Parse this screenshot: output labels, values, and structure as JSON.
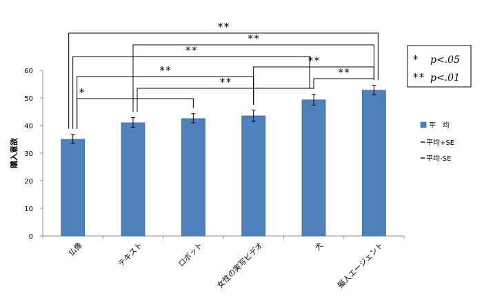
{
  "chart_data": {
    "type": "bar",
    "title": "",
    "xlabel": "",
    "ylabel": "購入意欲",
    "ylim": [
      0,
      60
    ],
    "yticks": [
      0,
      10,
      20,
      30,
      40,
      50,
      60
    ],
    "grid": false,
    "categories": [
      "仏像",
      "テキスト",
      "ロボット",
      "女性の実写ビデオ",
      "犬",
      "擬人エージェント"
    ],
    "series": [
      {
        "name": "平　均",
        "values": [
          35.0,
          41.0,
          42.5,
          43.5,
          49.3,
          52.8
        ],
        "se_upper": [
          36.8,
          42.9,
          44.3,
          45.6,
          51.3,
          54.6
        ],
        "se_lower": [
          33.5,
          39.4,
          41.0,
          41.5,
          47.4,
          51.2
        ]
      }
    ],
    "bar_color": "#4F81BD",
    "legend": {
      "position": "right",
      "entries": [
        "平　均",
        "平均+SE",
        "平均-SE"
      ]
    },
    "significance": [
      {
        "from": 0,
        "to": 5,
        "label": "**"
      },
      {
        "from": 1,
        "to": 5,
        "label": "**"
      },
      {
        "from": 0,
        "to": 4,
        "label": "**"
      },
      {
        "from": 3,
        "to": 5,
        "label": "**"
      },
      {
        "from": 0,
        "to": 3,
        "label": "**"
      },
      {
        "from": 4,
        "to": 5,
        "label": "**"
      },
      {
        "from": 1,
        "to": 4,
        "label": "**"
      },
      {
        "from": 0,
        "to": 2,
        "label": "*"
      }
    ],
    "p_legend": [
      {
        "marker": "*",
        "text": "p<.05"
      },
      {
        "marker": "**",
        "text": "p<.01"
      }
    ]
  }
}
